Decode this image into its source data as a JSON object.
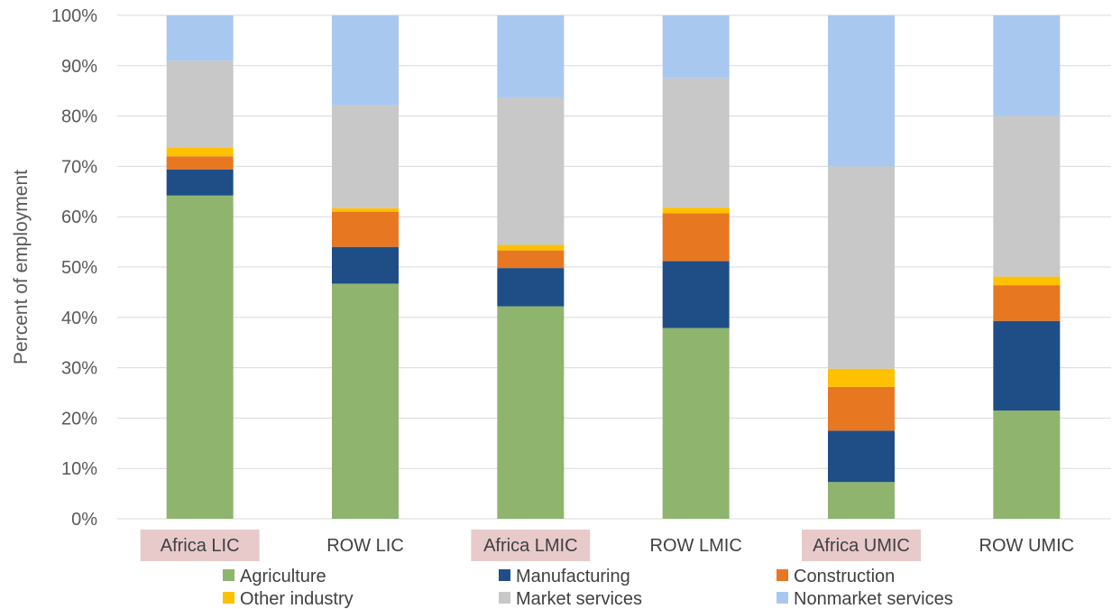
{
  "chart_data": {
    "type": "bar",
    "stacked": true,
    "percent": true,
    "categories": [
      "Africa LIC",
      "ROW LIC",
      "Africa LMIC",
      "ROW LMIC",
      "Africa UMIC",
      "ROW UMIC"
    ],
    "highlighted_categories": [
      "Africa LIC",
      "Africa LMIC",
      "Africa UMIC"
    ],
    "series": [
      {
        "name": "Agriculture",
        "color": "#8FB46E",
        "values": [
          64.2,
          46.7,
          42.2,
          37.9,
          7.3,
          21.5
        ]
      },
      {
        "name": "Manufacturing",
        "color": "#1F4E86",
        "values": [
          5.2,
          7.3,
          7.6,
          13.3,
          10.2,
          17.8
        ]
      },
      {
        "name": "Construction",
        "color": "#E87722",
        "values": [
          2.6,
          7.0,
          3.5,
          9.5,
          8.7,
          7.1
        ]
      },
      {
        "name": "Other industry",
        "color": "#FFC000",
        "values": [
          1.8,
          0.7,
          1.1,
          1.1,
          3.6,
          1.7
        ]
      },
      {
        "name": "Market services",
        "color": "#C8C8C8",
        "values": [
          17.2,
          20.4,
          29.3,
          25.7,
          40.2,
          31.9
        ]
      },
      {
        "name": "Nonmarket services",
        "color": "#A9C8EF",
        "values": [
          9.0,
          17.9,
          16.3,
          12.5,
          30.0,
          20.0
        ]
      }
    ],
    "ylabel": "Percent of employment",
    "yticks": [
      "0%",
      "10%",
      "20%",
      "30%",
      "40%",
      "50%",
      "60%",
      "70%",
      "80%",
      "90%",
      "100%"
    ],
    "ylim": [
      0,
      100
    ],
    "grid": true,
    "legend": "bottom",
    "highlight_color": "#E8CACA"
  }
}
